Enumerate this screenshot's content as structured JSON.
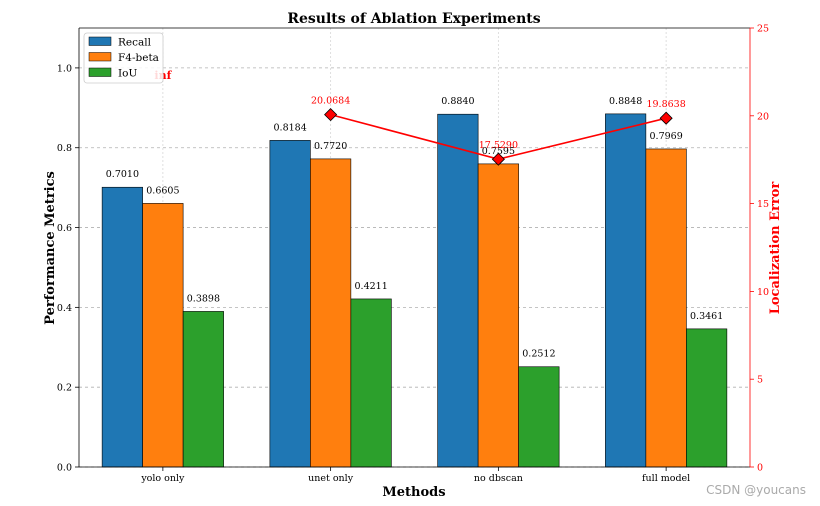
{
  "chart_data": {
    "type": "bar",
    "title": "Results of Ablation Experiments",
    "xlabel": "Methods",
    "ylabel": "Performance Metrics",
    "ylabel_right": "Localization Error",
    "categories": [
      "yolo only",
      "unet only",
      "no dbscan",
      "full model"
    ],
    "ylim": [
      0,
      1.1
    ],
    "ylim_right": [
      0,
      25
    ],
    "yticks": [
      "0.0",
      "0.2",
      "0.4",
      "0.6",
      "0.8",
      "1.0"
    ],
    "yticks_right": [
      "0",
      "5",
      "10",
      "15",
      "20",
      "25"
    ],
    "grid": true,
    "legend_position": "top-left",
    "series": [
      {
        "name": "Recall",
        "color": "#1f77b4",
        "values": [
          0.701,
          0.8184,
          0.884,
          0.8848
        ],
        "labels": [
          "0.7010",
          "0.8184",
          "0.8840",
          "0.8848"
        ]
      },
      {
        "name": "F4-beta",
        "color": "#ff7f0e",
        "values": [
          0.6605,
          0.772,
          0.7595,
          0.7969
        ],
        "labels": [
          "0.6605",
          "0.7720",
          "0.7595",
          "0.7969"
        ]
      },
      {
        "name": "IoU",
        "color": "#2ca02c",
        "values": [
          0.3898,
          0.4211,
          0.2512,
          0.3461
        ],
        "labels": [
          "0.3898",
          "0.4211",
          "0.2512",
          "0.3461"
        ]
      }
    ],
    "line_series": {
      "color": "#ff0000",
      "categories": [
        "unet only",
        "no dbscan",
        "full model"
      ],
      "values": [
        20.0684,
        17.529,
        19.8638
      ],
      "labels": [
        "20.0684",
        "17.5290",
        "19.8638"
      ]
    },
    "annotation": {
      "text": "inf",
      "category": "yolo only"
    }
  },
  "watermark": "CSDN @youcans"
}
